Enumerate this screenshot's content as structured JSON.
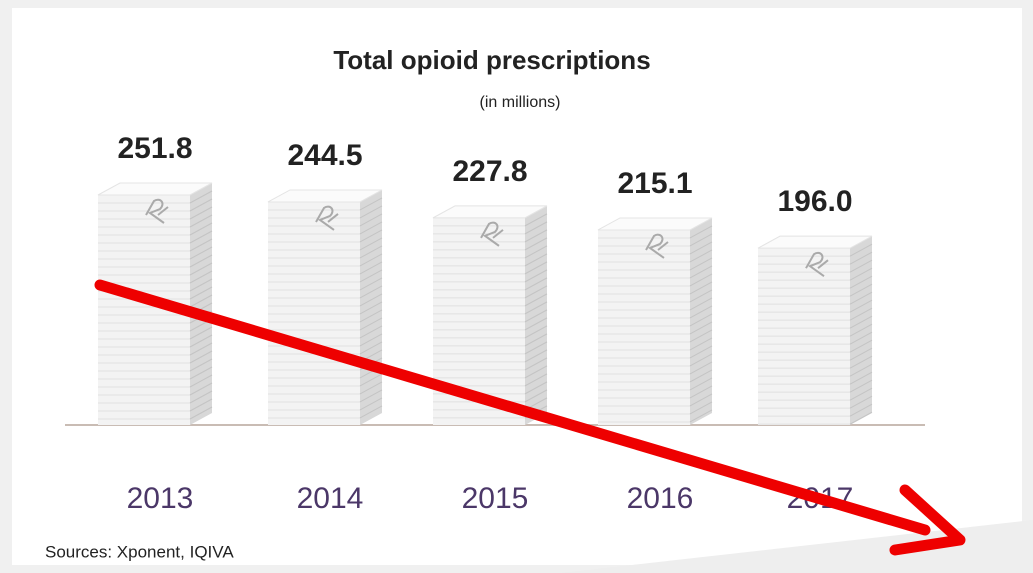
{
  "chart_data": {
    "type": "bar",
    "title": "Total opioid prescriptions",
    "subtitle": "(in millions)",
    "categories": [
      "2013",
      "2014",
      "2015",
      "2016",
      "2017"
    ],
    "values": [
      251.8,
      244.5,
      227.8,
      215.1,
      196.0
    ],
    "value_labels": [
      "251.8",
      "244.5",
      "227.8",
      "215.1",
      "196.0"
    ],
    "color": "#f3f3f3",
    "source": "Sources: Xponent, IQIVA"
  }
}
